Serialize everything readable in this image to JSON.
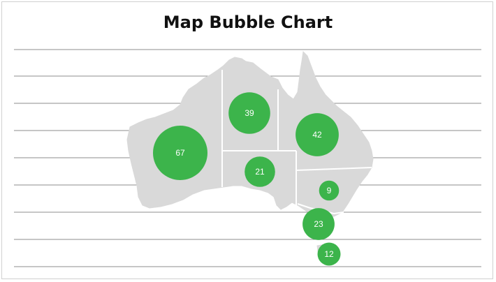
{
  "chart_data": {
    "type": "bubble-map",
    "title": "Map Bubble Chart",
    "map": "Australia",
    "grid": true,
    "bubble_color": "#3cb44b",
    "map_color": "#d9d9d9",
    "bubbles": [
      {
        "region": "Western Australia",
        "value": 67
      },
      {
        "region": "Northern Territory",
        "value": 39
      },
      {
        "region": "Queensland",
        "value": 42
      },
      {
        "region": "South Australia",
        "value": 21
      },
      {
        "region": "New South Wales",
        "value": 9
      },
      {
        "region": "Victoria",
        "value": 23
      },
      {
        "region": "Tasmania",
        "value": 12
      }
    ]
  }
}
